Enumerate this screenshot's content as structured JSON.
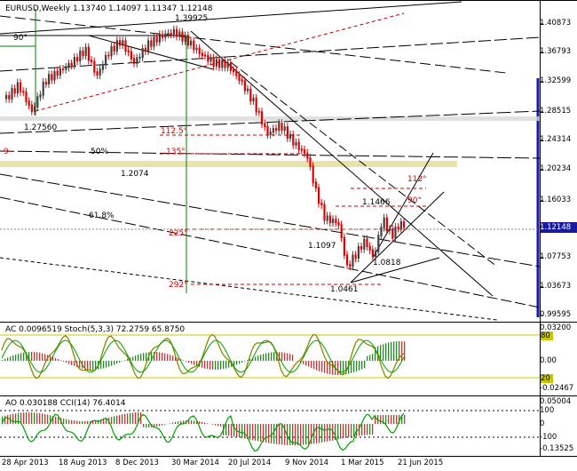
{
  "main": {
    "header": "EURUSD,Weekly  1.13740 1.14097 1.11347 1.12148",
    "price_axis": [
      "1.40873",
      "1.36793",
      "1.32599",
      "1.28515",
      "1.24314",
      "1.20234",
      "1.16033",
      "1.12148",
      "1.07753",
      "1.03673",
      "0.99595"
    ],
    "current_price": "1.12148",
    "annotations": {
      "high": "1.39925",
      "l1": "1.27560",
      "l2": "1.2074",
      "l3": "1.1466",
      "l4": "1.1097",
      "l5": "1.0818",
      "l6": "1.0461",
      "fib50": "50%",
      "fib618": "61.8%",
      "g90a": "90°",
      "g90b": "90°",
      "g112": "112.5°",
      "g112b": "112°",
      "g135": "135°",
      "g225": "225°",
      "g292": "292°",
      "g9": "9"
    }
  },
  "ac_panel": {
    "header": "AC 0.0096519  Stoch(5,3,3) 72.2759 65.8750",
    "axis": [
      "0.03200",
      "80",
      "0.00",
      "20",
      "-0.02467"
    ]
  },
  "ao_panel": {
    "header": "AO 0.030188  CCI(14) 76.4014",
    "axis": [
      "0.05004",
      "100",
      "0",
      "-100",
      "-0.13525"
    ]
  },
  "time_axis": [
    "28 Apr 2013",
    "18 Aug 2013",
    "8 Dec 2013",
    "30 Mar 2014",
    "20 Jul 2014",
    "9 Nov 2014",
    "1 Mar 2015",
    "21 Jun 2015"
  ],
  "colors": {
    "bull": "#404040",
    "bear": "#e00000",
    "price_tag": "#1a1aa0",
    "level": "#c8c800",
    "stoch": "#aaaa00",
    "ao_green": "#00a000"
  }
}
